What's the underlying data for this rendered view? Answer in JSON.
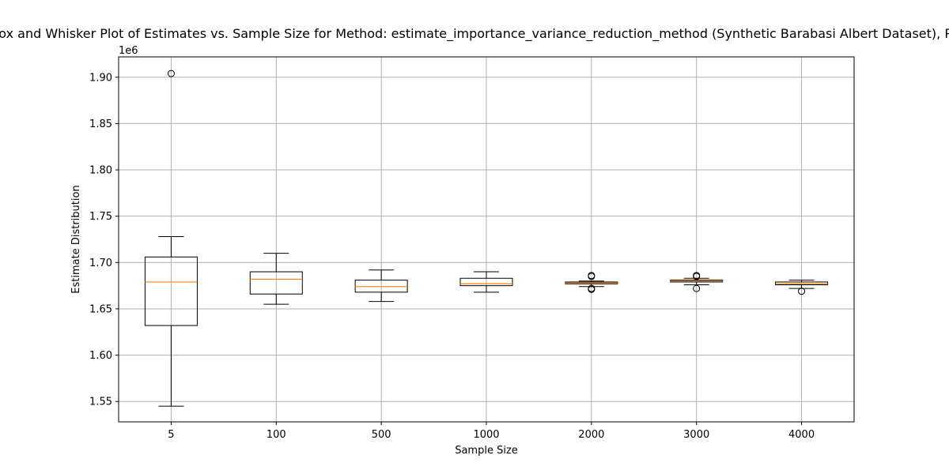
{
  "chart_data": {
    "type": "box",
    "title": "Box and Whisker Plot of Estimates vs. Sample Size for Method: estimate_importance_variance_reduction_method (Synthetic Barabasi Albert Dataset), Power",
    "xlabel": "Sample Size",
    "ylabel": "Estimate Distribution",
    "y_offset_label": "1e6",
    "ylim": [
      1.528,
      1.922
    ],
    "yticks": [
      1.55,
      1.6,
      1.65,
      1.7,
      1.75,
      1.8,
      1.85,
      1.9
    ],
    "ytick_labels": [
      "1.55",
      "1.60",
      "1.65",
      "1.70",
      "1.75",
      "1.80",
      "1.85",
      "1.90"
    ],
    "grid": true,
    "colors": {
      "box": "#000000",
      "median": "#ff7f0e",
      "grid": "#b0b0b0"
    },
    "categories": [
      "5",
      "100",
      "500",
      "1000",
      "2000",
      "3000",
      "4000"
    ],
    "boxes": [
      {
        "label": "5",
        "whisker_low": 1.545,
        "q1": 1.632,
        "median": 1.679,
        "q3": 1.706,
        "whisker_high": 1.728,
        "outliers": [
          1.904
        ]
      },
      {
        "label": "100",
        "whisker_low": 1.655,
        "q1": 1.666,
        "median": 1.682,
        "q3": 1.69,
        "whisker_high": 1.71,
        "outliers": []
      },
      {
        "label": "500",
        "whisker_low": 1.658,
        "q1": 1.668,
        "median": 1.674,
        "q3": 1.681,
        "whisker_high": 1.692,
        "outliers": []
      },
      {
        "label": "1000",
        "whisker_low": 1.668,
        "q1": 1.675,
        "median": 1.677,
        "q3": 1.683,
        "whisker_high": 1.69,
        "outliers": []
      },
      {
        "label": "2000",
        "whisker_low": 1.674,
        "q1": 1.677,
        "median": 1.678,
        "q3": 1.679,
        "whisker_high": 1.68,
        "outliers": [
          1.671,
          1.672,
          1.685,
          1.686
        ]
      },
      {
        "label": "3000",
        "whisker_low": 1.676,
        "q1": 1.679,
        "median": 1.68,
        "q3": 1.681,
        "whisker_high": 1.683,
        "outliers": [
          1.672,
          1.685,
          1.686
        ]
      },
      {
        "label": "4000",
        "whisker_low": 1.672,
        "q1": 1.676,
        "median": 1.677,
        "q3": 1.679,
        "whisker_high": 1.681,
        "outliers": [
          1.669
        ]
      }
    ]
  }
}
